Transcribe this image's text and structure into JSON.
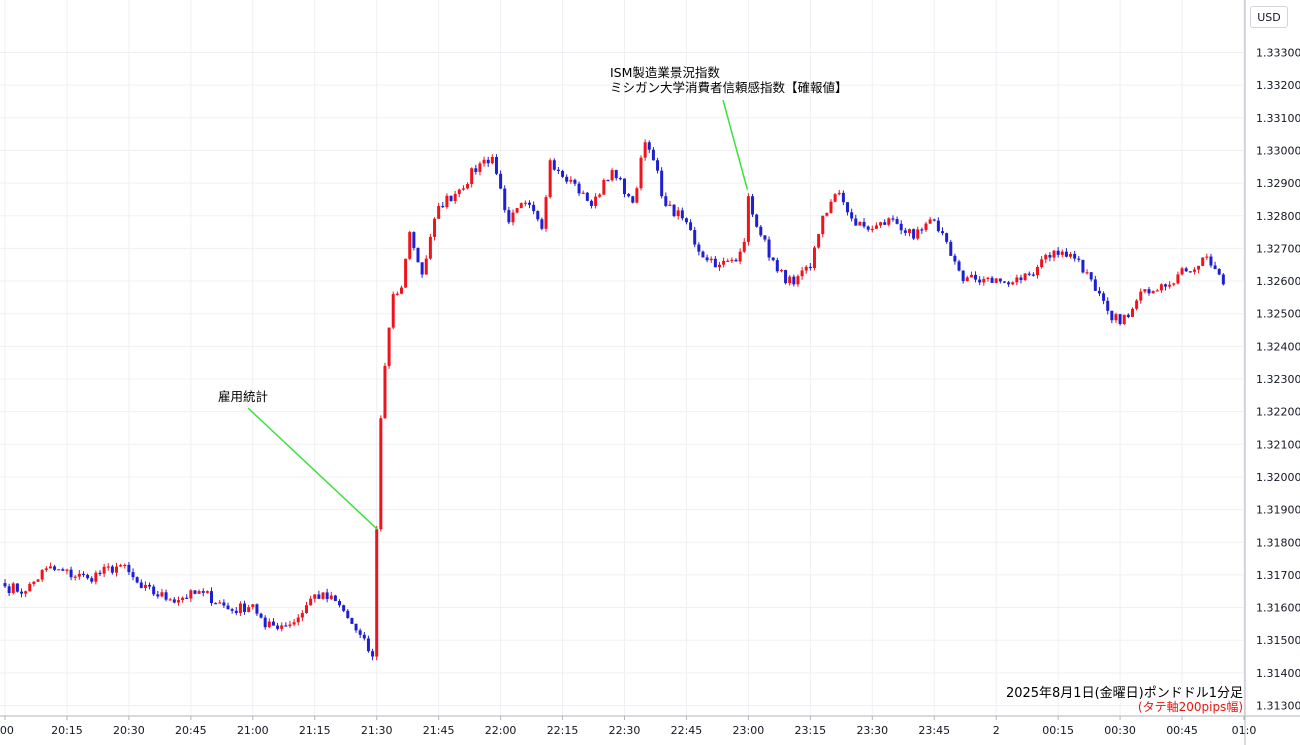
{
  "colors": {
    "up": "#f0131e",
    "down": "#1f1fd2",
    "grid": "#eef0f4",
    "annotation_line": "#3ae23a"
  },
  "axis": {
    "currency": "USD"
  },
  "captions": {
    "main": "2025年8月1日(金曜日)ポンドドル1分足",
    "sub": "(タテ軸200pips幅)"
  },
  "annotations": {
    "nfp": {
      "label": "雇用統計"
    },
    "ism": {
      "line1": "ISM製造業景況指数",
      "line2": "ミシガン大学消費者信頼感指数【確報値】"
    }
  },
  "chart_data": {
    "type": "candlestick",
    "instrument": "GBP/USD",
    "timeframe": "1 minute",
    "y_ticks": [
      "1.31300",
      "1.31400",
      "1.31500",
      "1.31600",
      "1.31700",
      "1.31800",
      "1.31900",
      "1.32000",
      "1.32100",
      "1.32200",
      "1.32300",
      "1.32400",
      "1.32500",
      "1.32600",
      "1.32700",
      "1.32800",
      "1.32900",
      "1.33000",
      "1.33100",
      "1.33200",
      "1.33300"
    ],
    "x_ticks": [
      ":00",
      "20:15",
      "20:30",
      "20:45",
      "21:00",
      "21:15",
      "21:30",
      "21:45",
      "22:00",
      "22:15",
      "22:30",
      "22:45",
      "23:00",
      "23:15",
      "23:30",
      "23:45",
      "2",
      "00:15",
      "00:30",
      "00:45",
      "01:0"
    ],
    "ylim": [
      1.3125,
      1.3345
    ],
    "x_start_time": "20:00",
    "anchors": [
      [
        "20:00",
        1.31665
      ],
      [
        "20:05",
        1.3165
      ],
      [
        "20:10",
        1.3172
      ],
      [
        "20:20",
        1.3169
      ],
      [
        "20:28",
        1.3173
      ],
      [
        "20:33",
        1.3166
      ],
      [
        "20:40",
        1.31625
      ],
      [
        "20:48",
        1.31645
      ],
      [
        "20:55",
        1.3159
      ],
      [
        "21:00",
        1.3161
      ],
      [
        "21:03",
        1.3154
      ],
      [
        "21:10",
        1.31555
      ],
      [
        "21:15",
        1.3164
      ],
      [
        "21:20",
        1.3162
      ],
      [
        "21:24",
        1.3155
      ],
      [
        "21:29",
        1.3145
      ],
      [
        "21:30",
        1.3184
      ],
      [
        "21:31",
        1.3218
      ],
      [
        "21:32",
        1.3234
      ],
      [
        "21:34",
        1.3256
      ],
      [
        "21:36",
        1.3258
      ],
      [
        "21:38",
        1.3275
      ],
      [
        "21:41",
        1.3262
      ],
      [
        "21:45",
        1.3283
      ],
      [
        "21:50",
        1.3288
      ],
      [
        "21:55",
        1.3296
      ],
      [
        "21:58",
        1.3298
      ],
      [
        "22:02",
        1.3278
      ],
      [
        "22:06",
        1.3284
      ],
      [
        "22:10",
        1.3276
      ],
      [
        "22:12",
        1.3297
      ],
      [
        "22:17",
        1.3291
      ],
      [
        "22:22",
        1.3283
      ],
      [
        "22:27",
        1.3294
      ],
      [
        "22:32",
        1.3284
      ],
      [
        "22:35",
        1.33025
      ],
      [
        "22:37",
        1.3297
      ],
      [
        "22:40",
        1.3283
      ],
      [
        "22:45",
        1.3278
      ],
      [
        "22:48",
        1.3269
      ],
      [
        "22:53",
        1.3265
      ],
      [
        "22:57",
        1.3266
      ],
      [
        "22:59",
        1.3272
      ],
      [
        "23:00",
        1.3286
      ],
      [
        "23:03",
        1.3274
      ],
      [
        "23:07",
        1.3263
      ],
      [
        "23:11",
        1.3259
      ],
      [
        "23:15",
        1.3264
      ],
      [
        "23:18",
        1.328
      ],
      [
        "23:22",
        1.3287
      ],
      [
        "23:26",
        1.3277
      ],
      [
        "23:30",
        1.3276
      ],
      [
        "23:35",
        1.3279
      ],
      [
        "23:40",
        1.3273
      ],
      [
        "23:45",
        1.32785
      ],
      [
        "23:48",
        1.3272
      ],
      [
        "23:52",
        1.326
      ],
      [
        "23:58",
        1.3261
      ],
      [
        "00:03",
        1.3259
      ],
      [
        "00:08",
        1.3262
      ],
      [
        "00:12",
        1.3268
      ],
      [
        "00:16",
        1.3269
      ],
      [
        "00:20",
        1.32665
      ],
      [
        "00:24",
        1.3257
      ],
      [
        "00:28",
        1.3248
      ],
      [
        "00:32",
        1.3249
      ],
      [
        "00:36",
        1.32575
      ],
      [
        "00:40",
        1.3259
      ],
      [
        "00:46",
        1.3263
      ],
      [
        "00:51",
        1.32675
      ],
      [
        "00:54",
        1.3262
      ],
      [
        "00:55",
        1.3259
      ]
    ]
  }
}
